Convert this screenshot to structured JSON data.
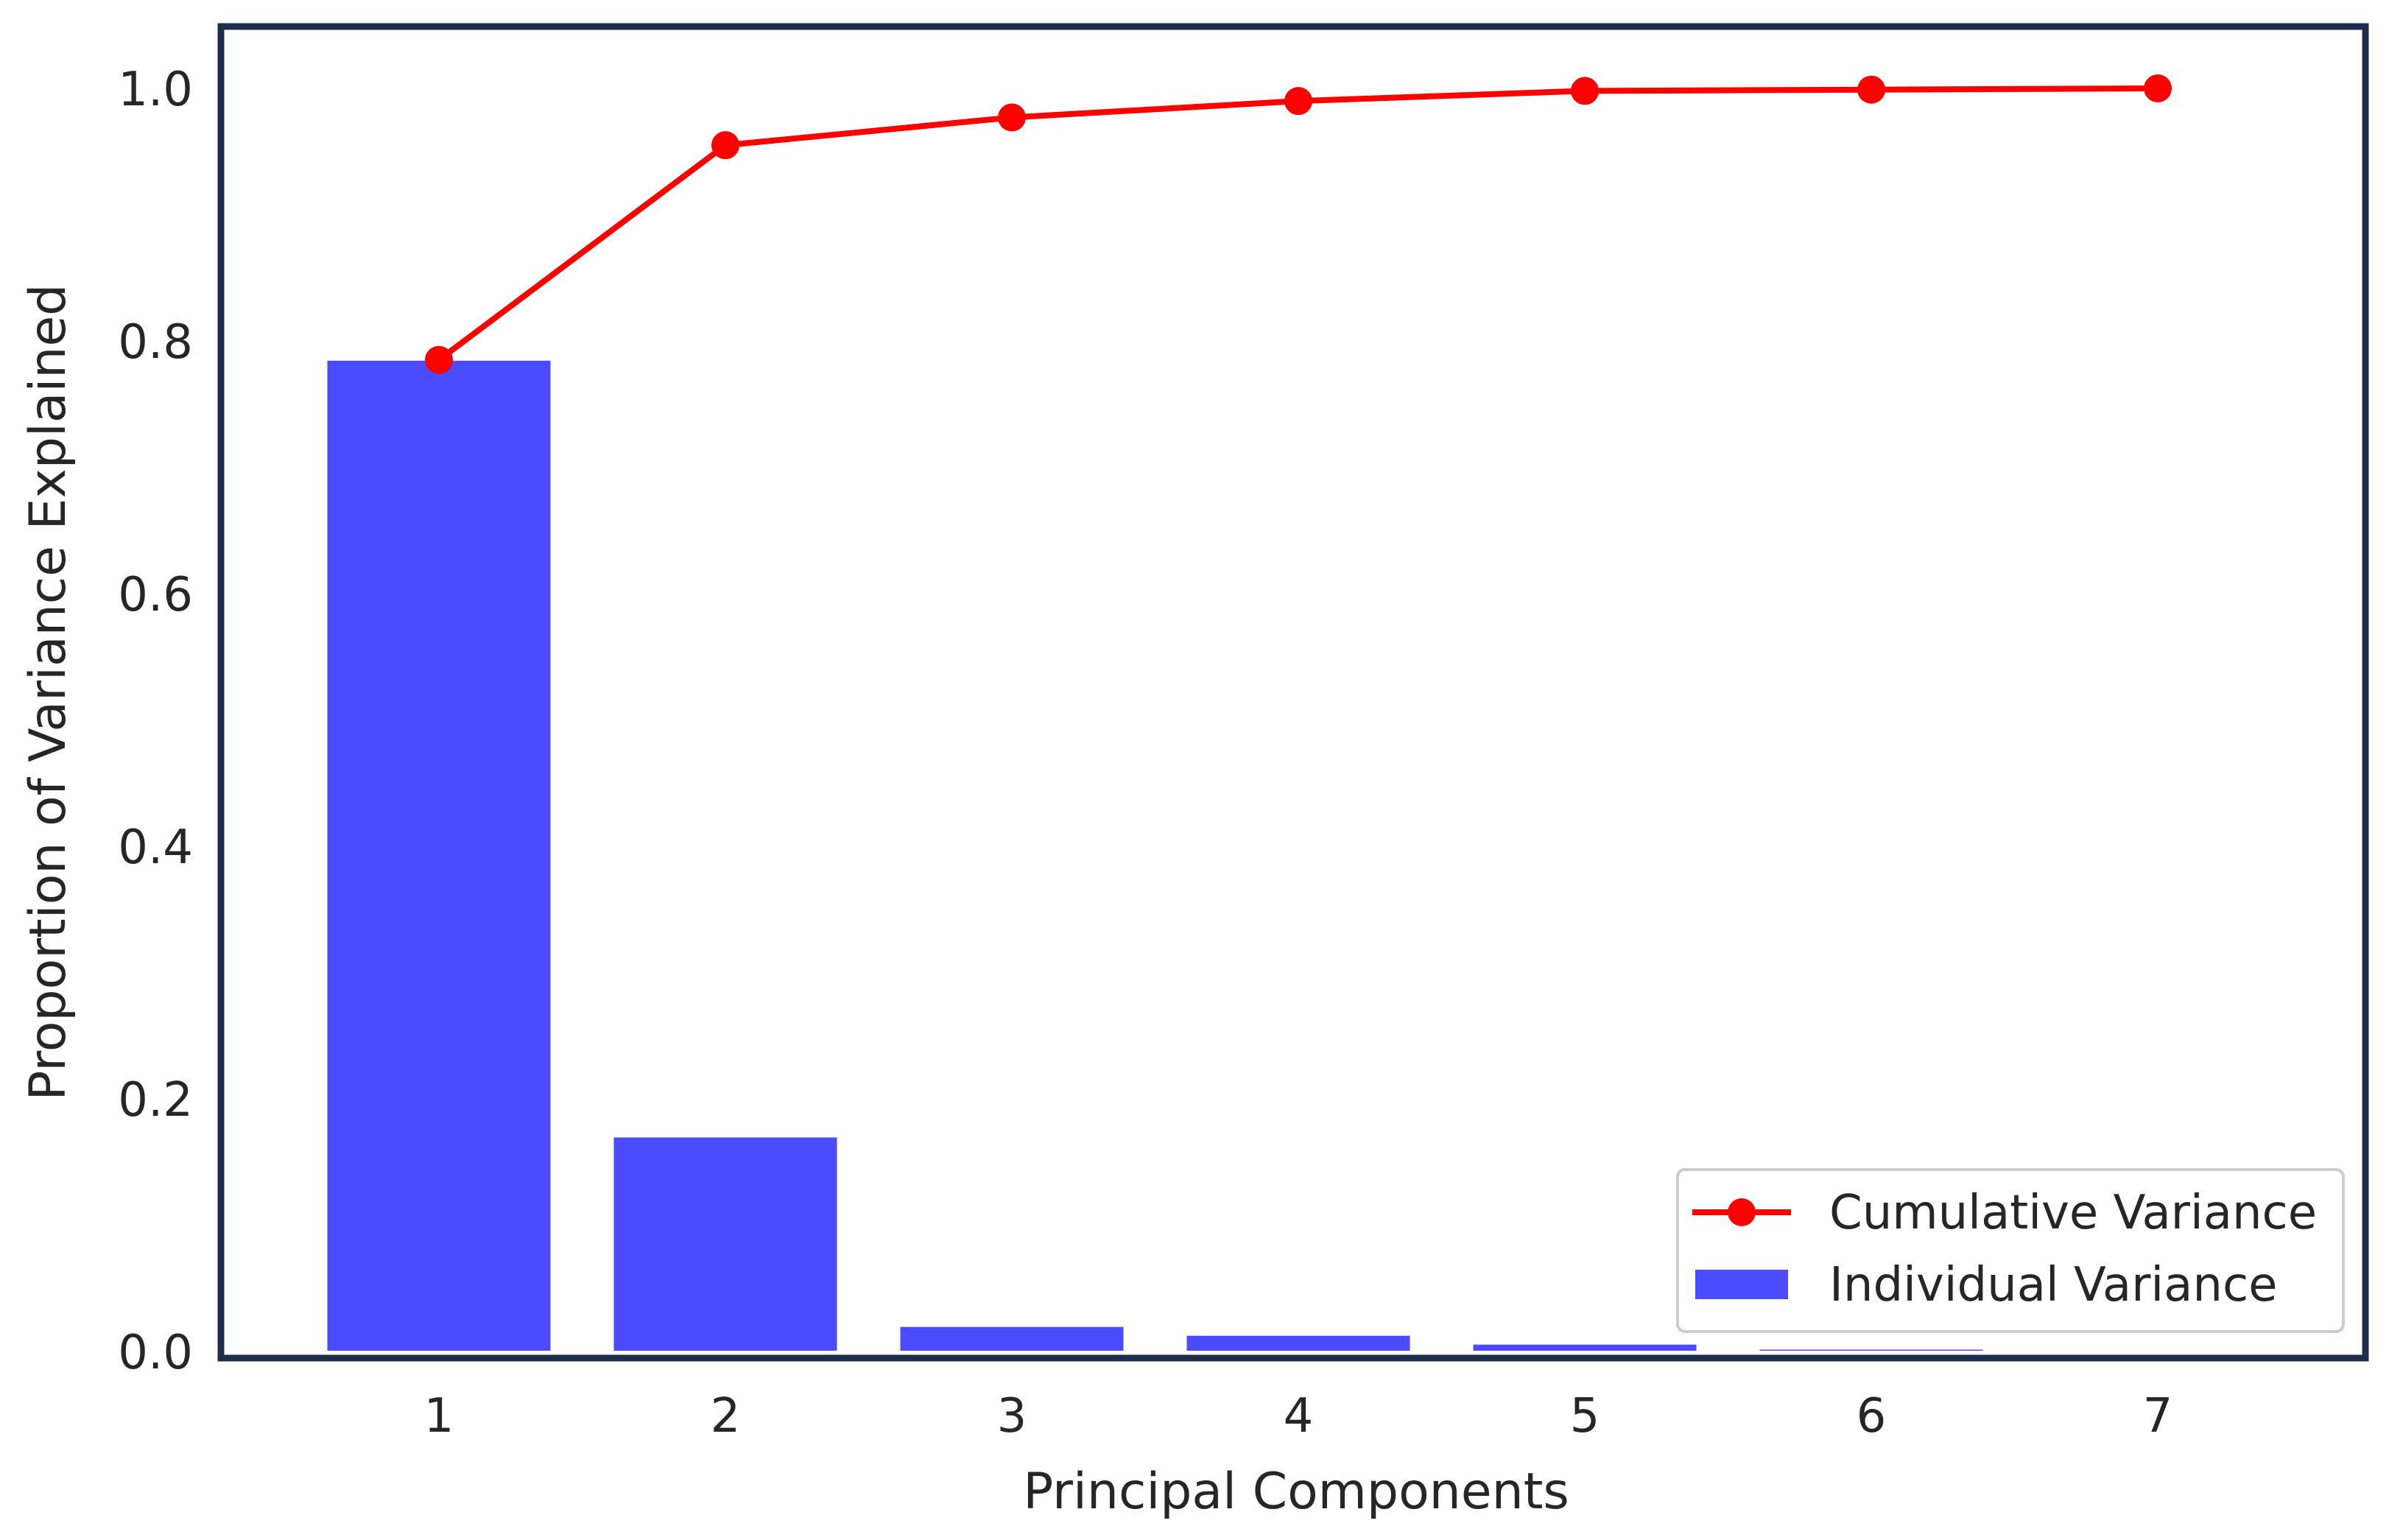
{
  "chart_data": {
    "type": "bar",
    "categories": [
      "1",
      "2",
      "3",
      "4",
      "5",
      "6",
      "7"
    ],
    "series": [
      {
        "name": "Individual Variance",
        "type": "bar",
        "color": "#4b4bff",
        "values": [
          0.785,
          0.17,
          0.02,
          0.013,
          0.006,
          0.002,
          0.001
        ]
      },
      {
        "name": "Cumulative Variance",
        "type": "line",
        "color": "#ff0000",
        "marker": "circle",
        "values": [
          0.785,
          0.955,
          0.977,
          0.99,
          0.998,
          0.999,
          1.0
        ]
      }
    ],
    "title": "",
    "xlabel": "Principal Components",
    "ylabel": "Proportion of Variance Explained",
    "ylim": [
      0.0,
      1.0
    ],
    "yticks": [
      "0.0",
      "0.2",
      "0.4",
      "0.6",
      "0.8",
      "1.0"
    ],
    "grid": false,
    "legend_position": "lower-right",
    "frame_color": "#1f2d4d"
  }
}
